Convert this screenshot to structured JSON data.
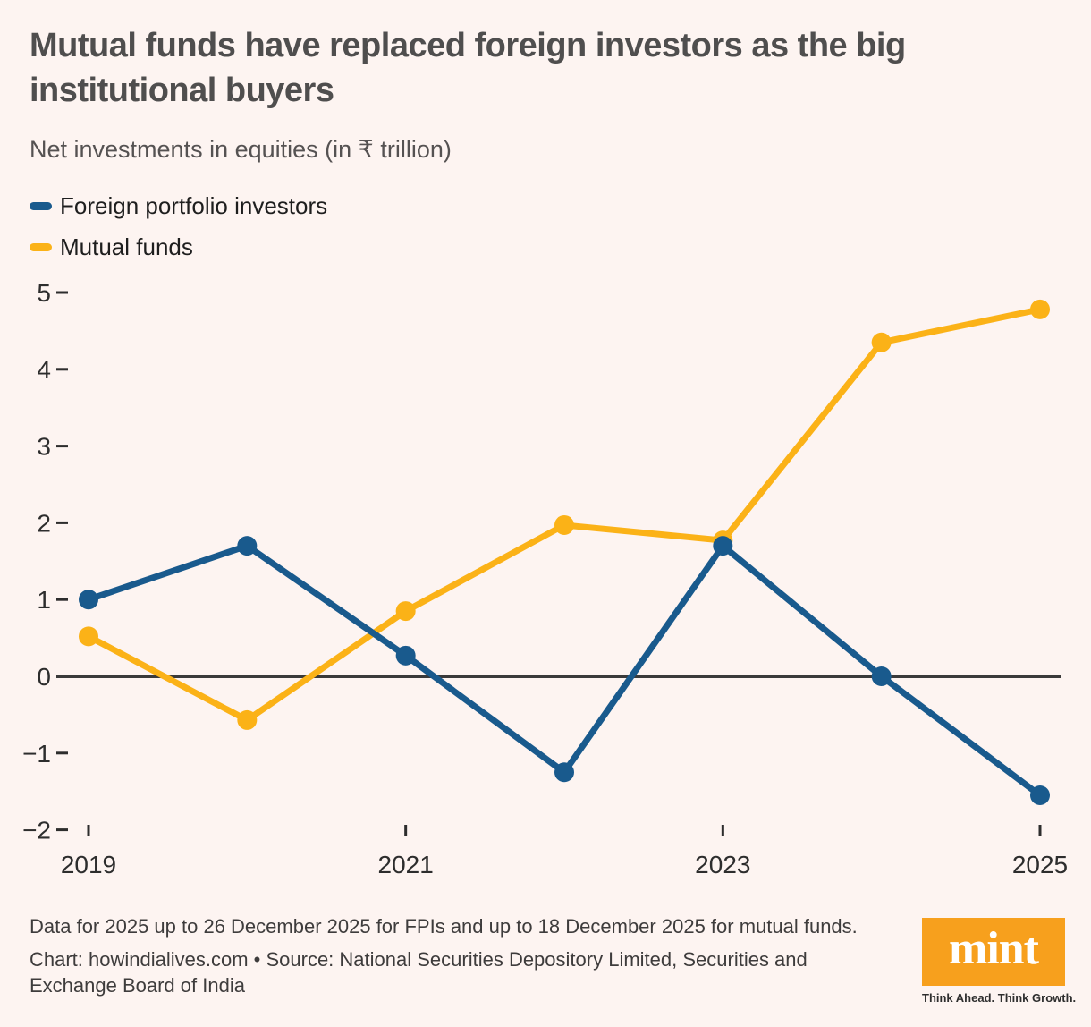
{
  "header": {
    "title": "Mutual funds have replaced foreign investors as the big institutional buyers",
    "subtitle": "Net investments in equities (in ₹ trillion)"
  },
  "legend": [
    {
      "label": "Foreign portfolio investors",
      "color": "#195a8d"
    },
    {
      "label": "Mutual funds",
      "color": "#fbb217"
    }
  ],
  "chart_data": {
    "type": "line",
    "x": [
      2019,
      2020,
      2021,
      2022,
      2023,
      2024,
      2025
    ],
    "series": [
      {
        "name": "Foreign portfolio investors",
        "color": "#195a8d",
        "values": [
          1.0,
          1.7,
          0.27,
          -1.25,
          1.7,
          0.0,
          -1.55
        ]
      },
      {
        "name": "Mutual funds",
        "color": "#fbb217",
        "values": [
          0.52,
          -0.57,
          0.85,
          1.97,
          1.77,
          4.35,
          4.78
        ]
      }
    ],
    "title": "Mutual funds have replaced foreign investors as the big institutional buyers",
    "subtitle": "Net investments in equities (in ₹ trillion)",
    "ylim": [
      -2,
      5
    ],
    "y_ticks": [
      5,
      4,
      3,
      2,
      1,
      0,
      -1,
      -2
    ],
    "x_tick_labels": [
      "2019",
      "2021",
      "2023",
      "2025"
    ],
    "grid": false,
    "zero_line": true,
    "zero_line_color": "#3a3a3a",
    "legend_position": "top-left"
  },
  "footer": {
    "note": "Data for 2025 up to 26 December 2025 for FPIs and up to 18 December 2025 for mutual funds.",
    "credit": "Chart: howindialives.com • Source: National Securities Depository Limited, Securities and Exchange Board of India",
    "logo_text": "mint",
    "logo_tagline": "Think Ahead. Think Growth.",
    "logo_color": "#f7a01d"
  },
  "colors": {
    "background": "#fdf4f1",
    "title_text": "#4f4e4e",
    "tick_text": "#2d2d2d",
    "fpi_blue": "#195a8d",
    "mf_yellow": "#fbb217"
  }
}
